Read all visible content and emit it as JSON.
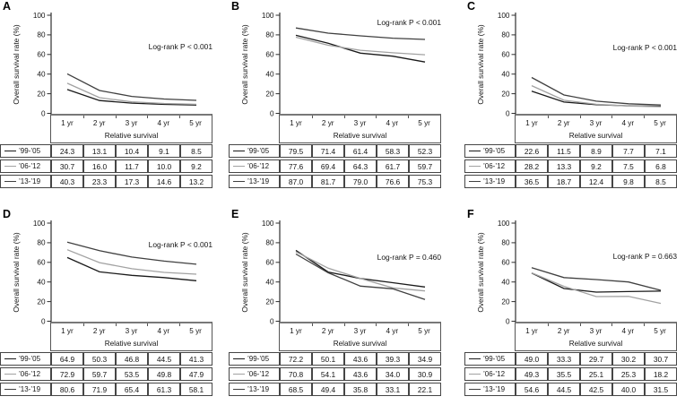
{
  "figure": {
    "y_axis_label": "Overall survival rate (%)",
    "x_axis_label": "Relative survival",
    "y_ticks": [
      "100",
      "80",
      "60",
      "40",
      "20",
      "0"
    ],
    "x_ticks": [
      "1 yr",
      "2 yr",
      "3 yr",
      "4 yr",
      "5 yr"
    ]
  },
  "series_colors": [
    "#1a1a1a",
    "#a2a2a2",
    "#404040"
  ],
  "chart_data": [
    {
      "panel": "A",
      "type": "line",
      "title": "Log-rank P < 0.001",
      "annotation_y": 55,
      "xlabel": "Relative survival",
      "ylabel": "Overall survival rate (%)",
      "ylim": [
        0,
        100
      ],
      "categories": [
        "1 yr",
        "2 yr",
        "3 yr",
        "4 yr",
        "5 yr"
      ],
      "series": [
        {
          "name": "’99-’05",
          "values": [
            24.3,
            13.1,
            10.4,
            9.1,
            8.5
          ]
        },
        {
          "name": "’06-’12",
          "values": [
            30.7,
            16.0,
            11.7,
            10.0,
            9.2
          ]
        },
        {
          "name": "’13-’19",
          "values": [
            40.3,
            23.3,
            17.3,
            14.6,
            13.2
          ]
        }
      ]
    },
    {
      "panel": "B",
      "type": "line",
      "title": "Log-rank P < 0.001",
      "annotation_y": 28,
      "xlabel": "Relative survival",
      "ylabel": "Overall survival rate (%)",
      "ylim": [
        0,
        100
      ],
      "categories": [
        "1 yr",
        "2 yr",
        "3 yr",
        "4 yr",
        "5 yr"
      ],
      "series": [
        {
          "name": "’99-’05",
          "values": [
            79.5,
            71.4,
            61.4,
            58.3,
            52.3
          ]
        },
        {
          "name": "’06-’12",
          "values": [
            77.6,
            69.4,
            64.3,
            61.7,
            59.7
          ]
        },
        {
          "name": "’13-’19",
          "values": [
            87.0,
            81.7,
            79.0,
            76.6,
            75.3
          ]
        }
      ]
    },
    {
      "panel": "C",
      "type": "line",
      "title": "Log-rank P < 0.001",
      "annotation_y": 56,
      "xlabel": "Relative survival",
      "ylabel": "Overall survival rate (%)",
      "ylim": [
        0,
        100
      ],
      "categories": [
        "1 yr",
        "2 yr",
        "3 yr",
        "4 yr",
        "5 yr"
      ],
      "series": [
        {
          "name": "’99-’05",
          "values": [
            22.6,
            11.5,
            8.9,
            7.7,
            7.1
          ]
        },
        {
          "name": "’06-’12",
          "values": [
            28.2,
            13.3,
            9.2,
            7.5,
            6.8
          ]
        },
        {
          "name": "’13-’19",
          "values": [
            36.5,
            18.7,
            12.4,
            9.8,
            8.5
          ]
        }
      ]
    },
    {
      "panel": "D",
      "type": "line",
      "title": "Log-rank P < 0.001",
      "annotation_y": 44,
      "xlabel": "Relative survival",
      "ylabel": "Overall survival rate (%)",
      "ylim": [
        0,
        100
      ],
      "categories": [
        "1 yr",
        "2 yr",
        "3 yr",
        "4 yr",
        "5 yr"
      ],
      "series": [
        {
          "name": "’99-’05",
          "values": [
            64.9,
            50.3,
            46.8,
            44.5,
            41.3
          ]
        },
        {
          "name": "’06-’12",
          "values": [
            72.9,
            59.7,
            53.5,
            49.8,
            47.9
          ]
        },
        {
          "name": "’13-’19",
          "values": [
            80.6,
            71.9,
            65.4,
            61.3,
            58.1
          ]
        }
      ]
    },
    {
      "panel": "E",
      "type": "line",
      "title": "Log-rank P = 0.460",
      "annotation_y": 58,
      "xlabel": "Relative survival",
      "ylabel": "Overall survival rate (%)",
      "ylim": [
        0,
        100
      ],
      "categories": [
        "1 yr",
        "2 yr",
        "3 yr",
        "4 yr",
        "5 yr"
      ],
      "series": [
        {
          "name": "’99-’05",
          "values": [
            72.2,
            50.1,
            43.6,
            39.3,
            34.9
          ]
        },
        {
          "name": "’06-’12",
          "values": [
            70.8,
            54.1,
            43.6,
            34.0,
            30.9
          ]
        },
        {
          "name": "’13-’19",
          "values": [
            68.5,
            49.4,
            35.8,
            33.1,
            22.1
          ]
        }
      ]
    },
    {
      "panel": "F",
      "type": "line",
      "title": "Log-rank P = 0.663",
      "annotation_y": 57,
      "xlabel": "Relative survival",
      "ylabel": "Overall survival rate (%)",
      "ylim": [
        0,
        100
      ],
      "categories": [
        "1 yr",
        "2 yr",
        "3 yr",
        "4 yr",
        "5 yr"
      ],
      "series": [
        {
          "name": "’99-’05",
          "values": [
            49.0,
            33.3,
            29.7,
            30.2,
            30.7
          ]
        },
        {
          "name": "’06-’12",
          "values": [
            49.3,
            35.5,
            25.1,
            25.3,
            18.2
          ]
        },
        {
          "name": "’13-’19",
          "values": [
            54.6,
            44.5,
            42.5,
            40.0,
            31.5
          ]
        }
      ]
    }
  ]
}
